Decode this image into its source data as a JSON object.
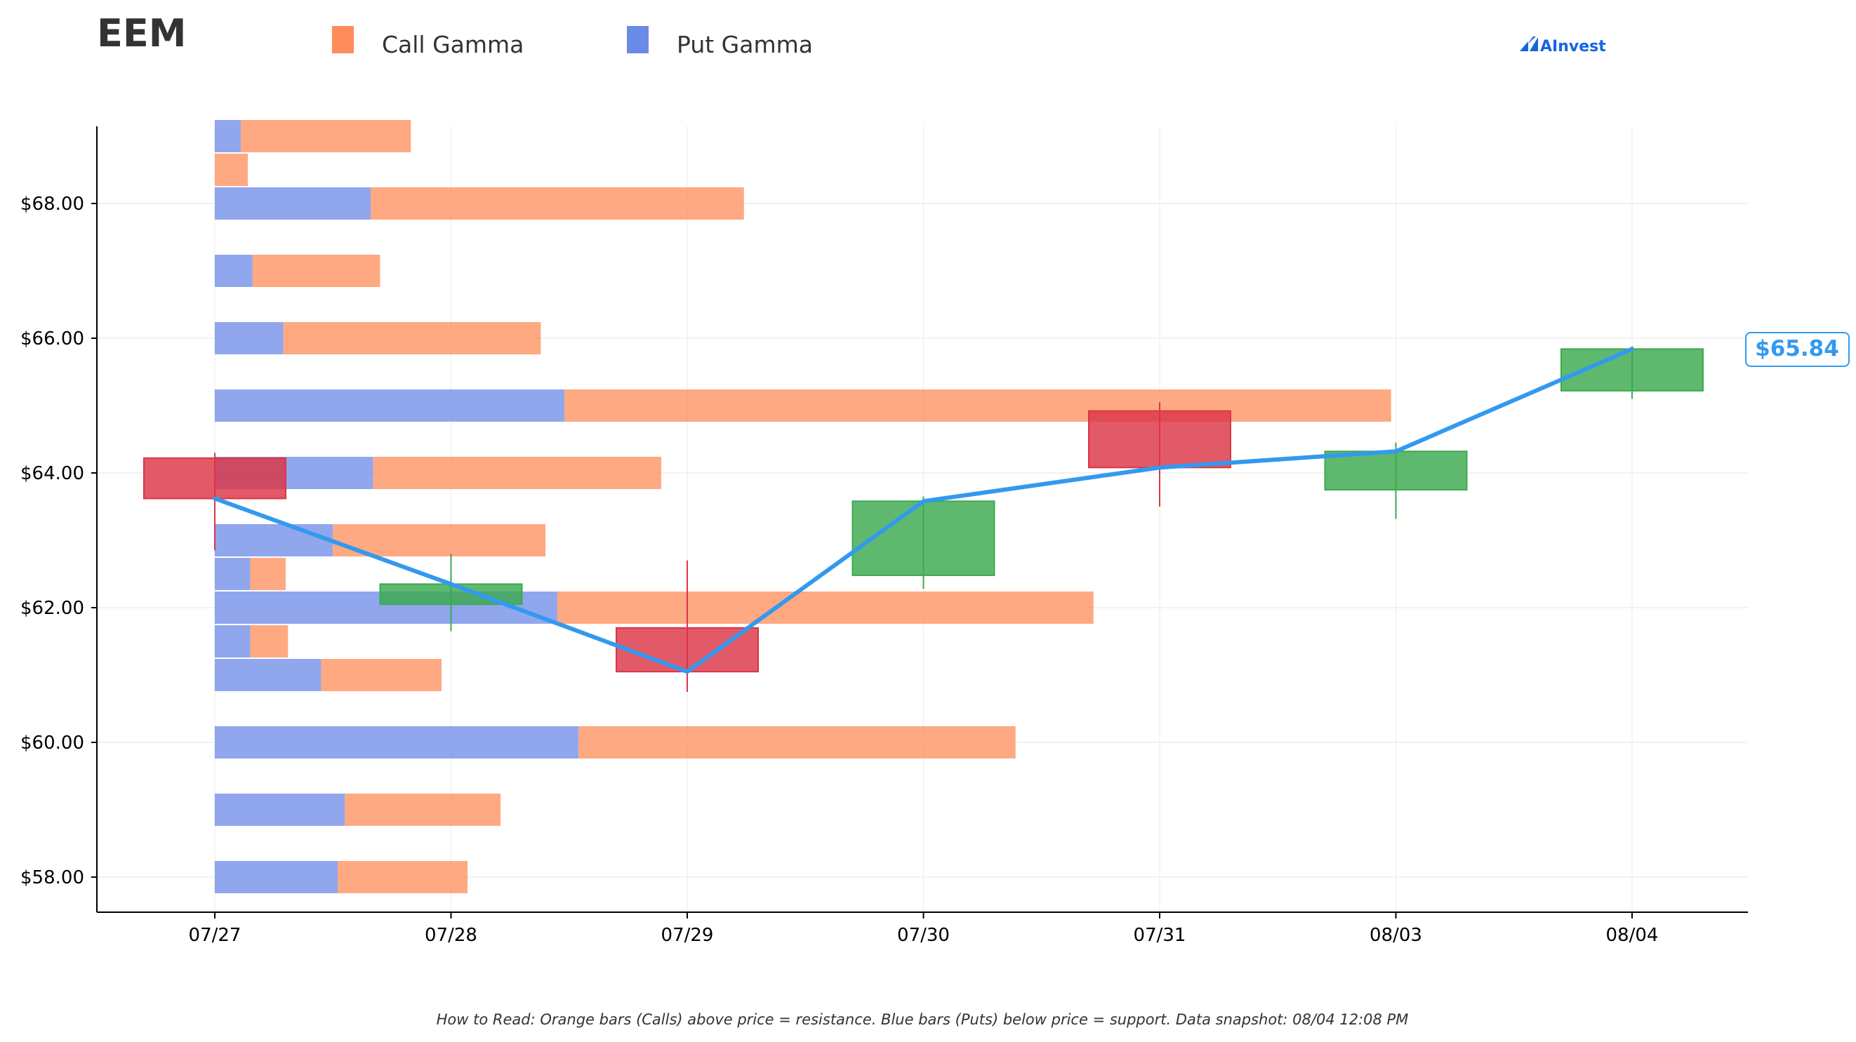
{
  "chart_data": {
    "type": "bar",
    "title": "EEM",
    "legend": {
      "placement": "top",
      "entries": [
        {
          "label": "Call Gamma",
          "color": "#FF8C5A"
        },
        {
          "label": "Put Gamma",
          "color": "#6B8AE8"
        }
      ]
    },
    "brand": "AInvest",
    "footnote": "How to Read: Orange bars (Calls) above price = resistance. Blue bars (Puts) below price = support. Data snapshot: 08/04 12:08 PM",
    "price_label": "$65.84",
    "x_categories": [
      "07/27",
      "07/28",
      "07/29",
      "07/30",
      "07/31",
      "08/03",
      "08/04"
    ],
    "y_ticks": [
      "$58.00",
      "$60.00",
      "$62.00",
      "$64.00",
      "$66.00",
      "$68.00"
    ],
    "y_tick_values": [
      58,
      60,
      62,
      64,
      66,
      68
    ],
    "ylim": [
      57.5,
      69.15
    ],
    "xlim": [
      -0.5,
      6.5
    ],
    "grid": true,
    "gamma_bars_note": "bar lengths measured in category-axis units starting at 07/27",
    "gamma_bars": [
      {
        "strike": 58,
        "put": 0.52,
        "call": 0.55
      },
      {
        "strike": 59,
        "put": 0.55,
        "call": 0.66
      },
      {
        "strike": 60,
        "put": 1.54,
        "call": 1.85
      },
      {
        "strike": 61,
        "put": 0.45,
        "call": 0.51
      },
      {
        "strike": 61.5,
        "put": 0.15,
        "call": 0.16
      },
      {
        "strike": 62,
        "put": 1.45,
        "call": 2.27
      },
      {
        "strike": 62.5,
        "put": 0.15,
        "call": 0.15
      },
      {
        "strike": 63,
        "put": 0.5,
        "call": 0.9
      },
      {
        "strike": 64,
        "put": 0.67,
        "call": 1.22
      },
      {
        "strike": 65,
        "put": 1.48,
        "call": 3.5
      },
      {
        "strike": 66,
        "put": 0.29,
        "call": 1.09
      },
      {
        "strike": 67,
        "put": 0.16,
        "call": 0.54
      },
      {
        "strike": 68,
        "put": 0.66,
        "call": 1.58
      },
      {
        "strike": 68.5,
        "put": 0.0,
        "call": 0.14
      },
      {
        "strike": 69,
        "put": 0.11,
        "call": 0.72
      }
    ],
    "candles": [
      {
        "date": "07/27",
        "open": 64.22,
        "high": 64.3,
        "low": 62.85,
        "close": 63.62
      },
      {
        "date": "07/28",
        "open": 62.05,
        "high": 62.8,
        "low": 61.65,
        "close": 62.35
      },
      {
        "date": "07/29",
        "open": 61.7,
        "high": 62.7,
        "low": 60.75,
        "close": 61.05
      },
      {
        "date": "07/30",
        "open": 62.48,
        "high": 63.65,
        "low": 62.28,
        "close": 63.58
      },
      {
        "date": "07/31",
        "open": 64.92,
        "high": 65.05,
        "low": 63.5,
        "close": 64.08
      },
      {
        "date": "08/03",
        "open": 63.75,
        "high": 64.45,
        "low": 63.32,
        "close": 64.32
      },
      {
        "date": "08/04",
        "open": 65.22,
        "high": 65.88,
        "low": 65.1,
        "close": 65.84
      }
    ],
    "price_line": {
      "color": "#3399EE",
      "values": [
        63.62,
        62.35,
        61.05,
        63.58,
        64.08,
        64.32,
        65.84
      ]
    },
    "colors": {
      "up": "#3BAA4E",
      "down": "#DC3545",
      "call": "#FF8C5A",
      "put": "#6B8AE8",
      "brand": "#1565E0"
    }
  }
}
